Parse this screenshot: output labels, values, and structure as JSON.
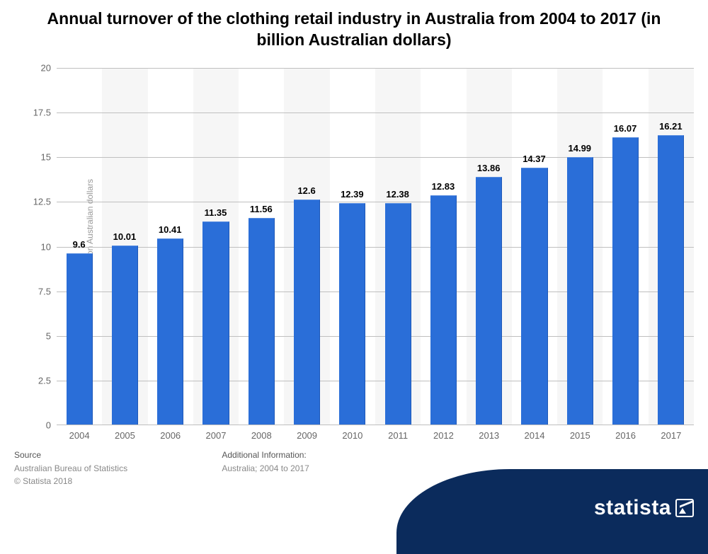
{
  "chart": {
    "type": "bar",
    "title": "Annual turnover of the clothing retail industry in Australia from 2004 to 2017 (in billion Australian dollars)",
    "title_fontsize": 23,
    "ylabel": "Annual turnover in billion Australian dollars",
    "label_fontsize": 12,
    "categories": [
      "2004",
      "2005",
      "2006",
      "2007",
      "2008",
      "2009",
      "2010",
      "2011",
      "2012",
      "2013",
      "2014",
      "2015",
      "2016",
      "2017"
    ],
    "values": [
      9.6,
      10.01,
      10.41,
      11.35,
      11.56,
      12.6,
      12.39,
      12.38,
      12.83,
      13.86,
      14.37,
      14.99,
      16.07,
      16.21
    ],
    "value_labels": [
      "9.6",
      "10.01",
      "10.41",
      "11.35",
      "11.56",
      "12.6",
      "12.39",
      "12.38",
      "12.83",
      "13.86",
      "14.37",
      "14.99",
      "16.07",
      "16.21"
    ],
    "bar_color": "#2a6ed8",
    "background_color": "#ffffff",
    "stripe_color": "#f6f6f6",
    "grid_color": "#bfbfbf",
    "ylim": [
      0,
      20
    ],
    "ytick_step": 2.5,
    "bar_width_ratio": 0.58,
    "tick_fontsize": 13,
    "tick_color": "#666666",
    "datalabel_fontsize": 13,
    "datalabel_color": "#000000"
  },
  "footer": {
    "source_heading": "Source",
    "source_line1": "Australian Bureau of Statistics",
    "source_line2": "© Statista 2018",
    "info_heading": "Additional Information:",
    "info_line1": "Australia; 2004 to 2017"
  },
  "logo": {
    "text": "statista",
    "bg_color": "#0b2b5c",
    "text_color": "#ffffff"
  }
}
